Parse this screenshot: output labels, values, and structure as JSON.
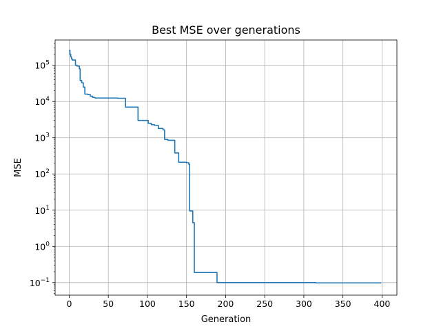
{
  "chart_data": {
    "type": "line",
    "title": "Best MSE over generations",
    "xlabel": "Generation",
    "ylabel": "MSE",
    "yscale": "log",
    "xlim": [
      -18,
      419
    ],
    "ylim": [
      0.045,
      500000
    ],
    "grid": true,
    "x_ticks": [
      0,
      50,
      100,
      150,
      200,
      250,
      300,
      350,
      400
    ],
    "x_tick_labels": [
      "0",
      "50",
      "100",
      "150",
      "200",
      "250",
      "300",
      "350",
      "400"
    ],
    "y_ticks": [
      0.1,
      1,
      10,
      100,
      1000,
      10000,
      100000
    ],
    "y_tick_labels": [
      {
        "base": "10",
        "exp": "−1"
      },
      {
        "base": "10",
        "exp": "0"
      },
      {
        "base": "10",
        "exp": "1"
      },
      {
        "base": "10",
        "exp": "2"
      },
      {
        "base": "10",
        "exp": "3"
      },
      {
        "base": "10",
        "exp": "4"
      },
      {
        "base": "10",
        "exp": "5"
      }
    ],
    "series": [
      {
        "color": "#1f77b4",
        "x": [
          0,
          1,
          1,
          2,
          2,
          3,
          3,
          4,
          4,
          8,
          8,
          10,
          10,
          13,
          13,
          14,
          14,
          16,
          16,
          18,
          18,
          20,
          20,
          24,
          24,
          27,
          27,
          30,
          30,
          33,
          33,
          62,
          62,
          72,
          72,
          88,
          88,
          101,
          101,
          105,
          105,
          109,
          109,
          114,
          114,
          120,
          120,
          122,
          122,
          126,
          126,
          135,
          135,
          140,
          140,
          150,
          150,
          153,
          153,
          154,
          154,
          157,
          157,
          158,
          158,
          160,
          160,
          189,
          189,
          315,
          315,
          399
        ],
        "y": [
          260000,
          260000,
          200000,
          200000,
          170000,
          170000,
          150000,
          150000,
          140000,
          140000,
          100000,
          100000,
          95000,
          95000,
          80000,
          80000,
          38000,
          38000,
          33000,
          33000,
          25000,
          25000,
          16000,
          16000,
          15500,
          15500,
          14000,
          14000,
          13000,
          13000,
          12500,
          12500,
          12300,
          12300,
          7000,
          7000,
          3000,
          3000,
          2500,
          2500,
          2300,
          2300,
          2200,
          2200,
          1800,
          1800,
          1650,
          1650,
          900,
          900,
          850,
          850,
          380,
          380,
          210,
          210,
          205,
          205,
          185,
          185,
          9.5,
          9.5,
          9.5,
          9.5,
          4.5,
          4.5,
          0.19,
          0.19,
          0.1,
          0.1,
          0.098,
          0.098
        ]
      }
    ]
  }
}
